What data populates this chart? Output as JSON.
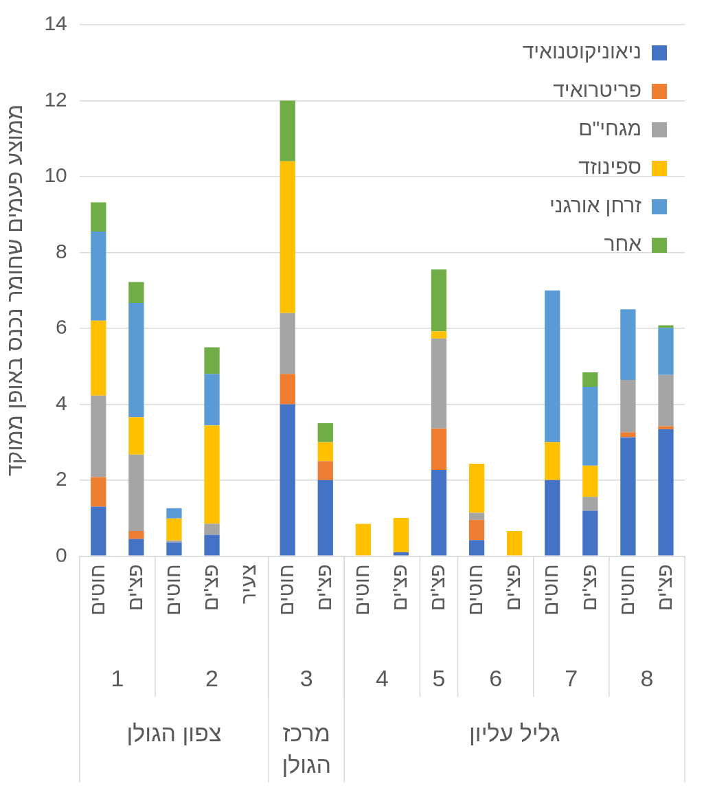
{
  "chart_data": {
    "type": "bar",
    "stacked": true,
    "ylabel": "ממוצע פעמים שחומר נכנס באופן ממוקד",
    "categories": [
      "חוטים",
      "פצ'ים",
      "חוטים",
      "פצ'ים",
      "צעיר",
      "חוטים",
      "פצ'ים",
      "חוטים",
      "פצ'ים",
      "פצ'ים",
      "חוטים",
      "פצ'ים",
      "חוטים",
      "פצ'ים",
      "חוטים",
      "פצ'ים"
    ],
    "series": [
      {
        "name": "ניאוניקוטנואיד",
        "color": "#4472c4",
        "values": [
          1.3,
          0.45,
          0.36,
          0.56,
          0,
          4.0,
          2.0,
          0,
          0.1,
          2.27,
          0.42,
          0,
          2.0,
          1.19,
          3.13,
          3.34
        ]
      },
      {
        "name": "פריטרואיד",
        "color": "#ed7d31",
        "values": [
          0.78,
          0.21,
          0,
          0,
          0,
          0.8,
          0.5,
          0,
          0,
          1.09,
          0.53,
          0,
          0,
          0,
          0.13,
          0.08
        ]
      },
      {
        "name": "מגחי\"ם",
        "color": "#a5a5a5",
        "values": [
          2.15,
          2.01,
          0.05,
          0.29,
          0,
          1.6,
          0,
          0,
          0,
          2.37,
          0.19,
          0,
          0,
          0.37,
          1.38,
          1.35
        ]
      },
      {
        "name": "ספינוזד",
        "color": "#ffc000",
        "values": [
          1.97,
          0.99,
          0.58,
          2.59,
          0,
          4.0,
          0.5,
          0.85,
          0.9,
          0.19,
          1.29,
          0.66,
          1.0,
          0.82,
          0,
          0
        ]
      },
      {
        "name": "זרחן אורגני",
        "color": "#5b9bd5",
        "values": [
          2.35,
          3.01,
          0.27,
          1.36,
          0,
          0,
          0,
          0,
          0,
          0,
          0,
          0,
          4.0,
          2.08,
          1.86,
          1.24
        ]
      },
      {
        "name": "אחר",
        "color": "#70ad47",
        "values": [
          0.77,
          0.55,
          0,
          0.7,
          0,
          1.6,
          0.5,
          0,
          0,
          1.63,
          0,
          0,
          0,
          0.38,
          0,
          0.07
        ]
      }
    ],
    "ylim": [
      0,
      14
    ],
    "yticks": [
      0,
      2,
      4,
      6,
      8,
      10,
      12,
      14
    ],
    "grid": "y",
    "legend": "top right",
    "annotations": [
      "1",
      "2",
      "3",
      "4",
      "5",
      "6",
      "7",
      "8",
      "צפון הגולן",
      "מרכז הגולן",
      "גליל עליון"
    ]
  }
}
